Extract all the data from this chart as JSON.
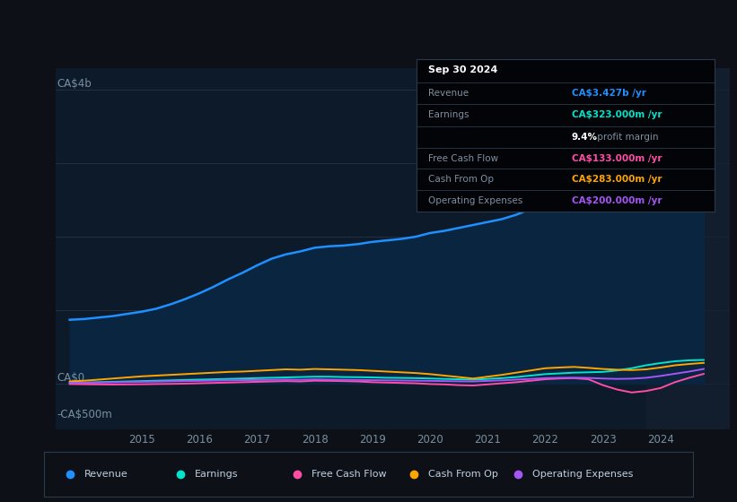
{
  "background_color": "#0d1117",
  "plot_bg_color": "#0d1a2a",
  "grid_color": "#253545",
  "text_color": "#7a8fa0",
  "ylabel_ca4b": "CA$4b",
  "ylabel_ca0": "CA$0",
  "ylabel_minus500m": "-CA$500m",
  "x_ticks": [
    2015,
    2016,
    2017,
    2018,
    2019,
    2020,
    2021,
    2022,
    2023,
    2024
  ],
  "x_min": 2013.5,
  "x_max": 2025.2,
  "y_min": -620,
  "y_max": 4300,
  "revenue_color": "#1e90ff",
  "earnings_color": "#00e5cc",
  "fcf_color": "#ff4da6",
  "cashfromop_color": "#ffa500",
  "opex_color": "#a855f7",
  "info_box": {
    "title": "Sep 30 2024",
    "revenue_label": "Revenue",
    "revenue_value": "CA$3.427b /yr",
    "revenue_value_color": "#1e90ff",
    "earnings_label": "Earnings",
    "earnings_value": "CA$323.000m /yr",
    "earnings_value_color": "#00e5cc",
    "profit_margin_pct": "9.4%",
    "profit_margin_text": " profit margin",
    "fcf_label": "Free Cash Flow",
    "fcf_value": "CA$133.000m /yr",
    "fcf_value_color": "#ff4da6",
    "cashfromop_label": "Cash From Op",
    "cashfromop_value": "CA$283.000m /yr",
    "cashfromop_value_color": "#ffa500",
    "opex_label": "Operating Expenses",
    "opex_value": "CA$200.000m /yr",
    "opex_value_color": "#a855f7"
  },
  "legend": [
    {
      "label": "Revenue",
      "color": "#1e90ff"
    },
    {
      "label": "Earnings",
      "color": "#00e5cc"
    },
    {
      "label": "Free Cash Flow",
      "color": "#ff4da6"
    },
    {
      "label": "Cash From Op",
      "color": "#ffa500"
    },
    {
      "label": "Operating Expenses",
      "color": "#a855f7"
    }
  ],
  "revenue_x": [
    2013.75,
    2014.0,
    2014.25,
    2014.5,
    2014.75,
    2015.0,
    2015.25,
    2015.5,
    2015.75,
    2016.0,
    2016.25,
    2016.5,
    2016.75,
    2017.0,
    2017.25,
    2017.5,
    2017.75,
    2018.0,
    2018.25,
    2018.5,
    2018.75,
    2019.0,
    2019.25,
    2019.5,
    2019.75,
    2020.0,
    2020.25,
    2020.5,
    2020.75,
    2021.0,
    2021.25,
    2021.5,
    2021.75,
    2022.0,
    2022.25,
    2022.5,
    2022.75,
    2023.0,
    2023.25,
    2023.5,
    2023.75,
    2024.0,
    2024.25,
    2024.5,
    2024.75
  ],
  "revenue_y": [
    870,
    880,
    900,
    920,
    950,
    980,
    1020,
    1080,
    1150,
    1230,
    1320,
    1420,
    1510,
    1610,
    1700,
    1760,
    1800,
    1850,
    1870,
    1880,
    1900,
    1930,
    1950,
    1970,
    2000,
    2050,
    2080,
    2120,
    2160,
    2200,
    2240,
    2300,
    2380,
    2500,
    2540,
    2550,
    2555,
    2600,
    2700,
    2820,
    2940,
    3080,
    3220,
    3340,
    3427
  ],
  "earnings_x": [
    2013.75,
    2014.0,
    2014.25,
    2014.5,
    2014.75,
    2015.0,
    2015.25,
    2015.5,
    2015.75,
    2016.0,
    2016.25,
    2016.5,
    2016.75,
    2017.0,
    2017.25,
    2017.5,
    2017.75,
    2018.0,
    2018.25,
    2018.5,
    2018.75,
    2019.0,
    2019.25,
    2019.5,
    2019.75,
    2020.0,
    2020.25,
    2020.5,
    2020.75,
    2021.0,
    2021.25,
    2021.5,
    2021.75,
    2022.0,
    2022.25,
    2022.5,
    2022.75,
    2023.0,
    2023.25,
    2023.5,
    2023.75,
    2024.0,
    2024.25,
    2024.5,
    2024.75
  ],
  "earnings_y": [
    10,
    15,
    20,
    25,
    30,
    35,
    40,
    45,
    50,
    55,
    60,
    65,
    70,
    75,
    80,
    85,
    90,
    95,
    95,
    90,
    88,
    85,
    80,
    78,
    75,
    70,
    65,
    60,
    55,
    65,
    75,
    90,
    110,
    130,
    140,
    150,
    155,
    160,
    180,
    210,
    250,
    280,
    305,
    318,
    323
  ],
  "fcf_x": [
    2013.75,
    2014.0,
    2014.25,
    2014.5,
    2014.75,
    2015.0,
    2015.25,
    2015.5,
    2015.75,
    2016.0,
    2016.25,
    2016.5,
    2016.75,
    2017.0,
    2017.25,
    2017.5,
    2017.75,
    2018.0,
    2018.25,
    2018.5,
    2018.75,
    2019.0,
    2019.25,
    2019.5,
    2019.75,
    2020.0,
    2020.25,
    2020.5,
    2020.75,
    2021.0,
    2021.25,
    2021.5,
    2021.75,
    2022.0,
    2022.25,
    2022.5,
    2022.75,
    2023.0,
    2023.25,
    2023.5,
    2023.75,
    2024.0,
    2024.25,
    2024.5,
    2024.75
  ],
  "fcf_y": [
    -5,
    -8,
    -10,
    -12,
    -10,
    -8,
    -5,
    -3,
    0,
    5,
    10,
    15,
    20,
    25,
    30,
    35,
    30,
    40,
    38,
    35,
    30,
    20,
    15,
    10,
    5,
    -5,
    -10,
    -20,
    -25,
    -10,
    5,
    20,
    40,
    60,
    70,
    75,
    60,
    -20,
    -80,
    -120,
    -100,
    -60,
    20,
    80,
    133
  ],
  "cashfromop_x": [
    2013.75,
    2014.0,
    2014.25,
    2014.5,
    2014.75,
    2015.0,
    2015.25,
    2015.5,
    2015.75,
    2016.0,
    2016.25,
    2016.5,
    2016.75,
    2017.0,
    2017.25,
    2017.5,
    2017.75,
    2018.0,
    2018.25,
    2018.5,
    2018.75,
    2019.0,
    2019.25,
    2019.5,
    2019.75,
    2020.0,
    2020.25,
    2020.5,
    2020.75,
    2021.0,
    2021.25,
    2021.5,
    2021.75,
    2022.0,
    2022.25,
    2022.5,
    2022.75,
    2023.0,
    2023.25,
    2023.5,
    2023.75,
    2024.0,
    2024.25,
    2024.5,
    2024.75
  ],
  "cashfromop_y": [
    30,
    40,
    55,
    70,
    85,
    100,
    110,
    120,
    130,
    140,
    150,
    160,
    165,
    175,
    185,
    195,
    190,
    200,
    195,
    190,
    185,
    175,
    165,
    155,
    145,
    130,
    110,
    90,
    70,
    95,
    120,
    150,
    180,
    210,
    220,
    228,
    215,
    200,
    190,
    185,
    195,
    220,
    250,
    268,
    283
  ],
  "opex_x": [
    2013.75,
    2014.0,
    2014.25,
    2014.5,
    2014.75,
    2015.0,
    2015.25,
    2015.5,
    2015.75,
    2016.0,
    2016.25,
    2016.5,
    2016.75,
    2017.0,
    2017.25,
    2017.5,
    2017.75,
    2018.0,
    2018.25,
    2018.5,
    2018.75,
    2019.0,
    2019.25,
    2019.5,
    2019.75,
    2020.0,
    2020.25,
    2020.5,
    2020.75,
    2021.0,
    2021.25,
    2021.5,
    2021.75,
    2022.0,
    2022.25,
    2022.5,
    2022.75,
    2023.0,
    2023.25,
    2023.5,
    2023.75,
    2024.0,
    2024.25,
    2024.5,
    2024.75
  ],
  "opex_y": [
    10,
    12,
    15,
    18,
    22,
    25,
    28,
    32,
    35,
    38,
    42,
    45,
    48,
    50,
    52,
    55,
    52,
    58,
    55,
    52,
    50,
    48,
    45,
    43,
    40,
    38,
    35,
    32,
    30,
    38,
    45,
    55,
    65,
    75,
    80,
    82,
    78,
    70,
    65,
    68,
    80,
    105,
    135,
    165,
    200
  ]
}
